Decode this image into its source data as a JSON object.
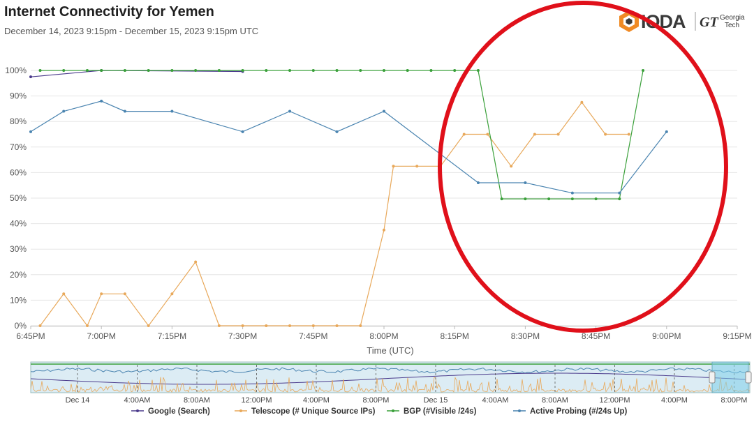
{
  "header": {
    "title": "Internet Connectivity for Yemen",
    "subtitle": "December 14, 2023 9:15pm - December 15, 2023 9:15pm UTC",
    "logo_text": "IODA",
    "partner_logo_text": "GT",
    "partner_name_line1": "Georgia",
    "partner_name_line2": "Tech"
  },
  "colors": {
    "google": "#4b3b8c",
    "telescope": "#e8a85a",
    "bgp": "#3aa03a",
    "active_probing": "#4a84b0",
    "grid": "#e6e6e6",
    "annotation": "#e0101a",
    "navigator_fill": "#dcecf4"
  },
  "chart_data": {
    "type": "line",
    "title": "",
    "xlabel": "Time (UTC)",
    "ylabel": "",
    "ylim": [
      0,
      100
    ],
    "y_ticks": [
      "0%",
      "10%",
      "20%",
      "30%",
      "40%",
      "50%",
      "60%",
      "70%",
      "80%",
      "90%",
      "100%"
    ],
    "x_range": [
      "6:45PM",
      "9:15PM"
    ],
    "x_ticks": [
      "6:45PM",
      "7:00PM",
      "7:15PM",
      "7:30PM",
      "7:45PM",
      "8:00PM",
      "8:15PM",
      "8:30PM",
      "8:45PM",
      "9:00PM",
      "9:15PM"
    ],
    "grid": true,
    "series": [
      {
        "name": "Google (Search)",
        "color_key": "google",
        "points": [
          [
            "6:45PM",
            97.5
          ],
          [
            "7:00PM",
            100
          ],
          [
            "7:30PM",
            99.6
          ]
        ]
      },
      {
        "name": "Telescope (# Unique Source IPs)",
        "color_key": "telescope",
        "points": [
          [
            "6:47PM",
            0
          ],
          [
            "6:52PM",
            12.5
          ],
          [
            "6:57PM",
            0
          ],
          [
            "7:00PM",
            12.5
          ],
          [
            "7:05PM",
            12.5
          ],
          [
            "7:10PM",
            0
          ],
          [
            "7:15PM",
            12.5
          ],
          [
            "7:20PM",
            25
          ],
          [
            "7:25PM",
            0
          ],
          [
            "7:30PM",
            0
          ],
          [
            "7:35PM",
            0
          ],
          [
            "7:40PM",
            0
          ],
          [
            "7:45PM",
            0
          ],
          [
            "7:50PM",
            0
          ],
          [
            "7:55PM",
            0
          ],
          [
            "8:00PM",
            37.5
          ],
          [
            "8:02PM",
            62.5
          ],
          [
            "8:07PM",
            62.5
          ],
          [
            "8:12PM",
            62.5
          ],
          [
            "8:17PM",
            75
          ],
          [
            "8:22PM",
            75
          ],
          [
            "8:27PM",
            62.5
          ],
          [
            "8:32PM",
            75
          ],
          [
            "8:37PM",
            75
          ],
          [
            "8:42PM",
            87.5
          ],
          [
            "8:47PM",
            75
          ],
          [
            "8:52PM",
            75
          ]
        ]
      },
      {
        "name": "BGP (#Visible /24s)",
        "color_key": "bgp",
        "points": [
          [
            "6:47PM",
            100
          ],
          [
            "6:52PM",
            100
          ],
          [
            "6:57PM",
            100
          ],
          [
            "7:00PM",
            100
          ],
          [
            "7:05PM",
            100
          ],
          [
            "7:10PM",
            100
          ],
          [
            "7:15PM",
            100
          ],
          [
            "7:20PM",
            100
          ],
          [
            "7:25PM",
            100
          ],
          [
            "7:30PM",
            100
          ],
          [
            "7:35PM",
            100
          ],
          [
            "7:40PM",
            100
          ],
          [
            "7:45PM",
            100
          ],
          [
            "7:50PM",
            100
          ],
          [
            "7:55PM",
            100
          ],
          [
            "8:00PM",
            100
          ],
          [
            "8:05PM",
            100
          ],
          [
            "8:10PM",
            100
          ],
          [
            "8:15PM",
            100
          ],
          [
            "8:20PM",
            100
          ],
          [
            "8:25PM",
            49.7
          ],
          [
            "8:30PM",
            49.7
          ],
          [
            "8:35PM",
            49.7
          ],
          [
            "8:40PM",
            49.7
          ],
          [
            "8:45PM",
            49.7
          ],
          [
            "8:50PM",
            49.7
          ],
          [
            "8:55PM",
            100
          ]
        ]
      },
      {
        "name": "Active Probing (#/24s Up)",
        "color_key": "active_probing",
        "points": [
          [
            "6:45PM",
            76
          ],
          [
            "6:52PM",
            84
          ],
          [
            "7:00PM",
            88
          ],
          [
            "7:05PM",
            84
          ],
          [
            "7:15PM",
            84
          ],
          [
            "7:30PM",
            76
          ],
          [
            "7:40PM",
            84
          ],
          [
            "7:50PM",
            76
          ],
          [
            "8:00PM",
            84
          ],
          [
            "8:20PM",
            56
          ],
          [
            "8:30PM",
            56
          ],
          [
            "8:40PM",
            52
          ],
          [
            "8:50PM",
            52
          ],
          [
            "9:00PM",
            76
          ]
        ]
      }
    ]
  },
  "navigator": {
    "labels": [
      "Dec 14",
      "4:00AM",
      "8:00AM",
      "12:00PM",
      "4:00PM",
      "8:00PM",
      "Dec 15",
      "4:00AM",
      "8:00AM",
      "12:00PM",
      "4:00PM",
      "8:00PM"
    ]
  },
  "legend": {
    "placement": "bottom",
    "items": [
      {
        "label": "Google (Search)",
        "color_key": "google"
      },
      {
        "label": "Telescope (# Unique Source IPs)",
        "color_key": "telescope"
      },
      {
        "label": "BGP (#Visible /24s)",
        "color_key": "bgp"
      },
      {
        "label": "Active Probing (#/24s Up)",
        "color_key": "active_probing"
      }
    ]
  }
}
